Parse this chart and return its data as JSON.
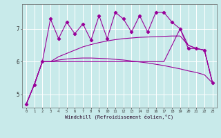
{
  "background_color": "#c8eaea",
  "line_color": "#990099",
  "x_hours": [
    0,
    1,
    2,
    3,
    4,
    5,
    6,
    7,
    8,
    9,
    10,
    11,
    12,
    13,
    14,
    15,
    16,
    17,
    18,
    19,
    20,
    21,
    22,
    23
  ],
  "spiky_y": [
    4.7,
    5.3,
    6.0,
    7.3,
    6.7,
    7.2,
    6.85,
    7.15,
    6.65,
    7.4,
    6.7,
    7.5,
    7.3,
    6.9,
    7.4,
    6.9,
    7.5,
    7.5,
    7.2,
    7.0,
    6.4,
    6.4,
    6.35,
    5.35
  ],
  "line1_y": [
    4.7,
    5.3,
    6.0,
    6.0,
    6.0,
    6.0,
    6.0,
    6.0,
    6.0,
    6.0,
    6.0,
    6.0,
    6.0,
    6.0,
    6.0,
    6.0,
    6.0,
    6.0,
    6.5,
    7.0,
    6.5,
    6.4,
    6.35,
    5.35
  ],
  "line2_y": [
    4.7,
    5.3,
    6.0,
    6.0,
    6.15,
    6.25,
    6.35,
    6.45,
    6.52,
    6.58,
    6.63,
    6.67,
    6.7,
    6.72,
    6.74,
    6.75,
    6.76,
    6.77,
    6.78,
    6.78,
    6.5,
    6.4,
    6.35,
    5.35
  ],
  "line3_y": [
    4.7,
    5.3,
    6.0,
    6.0,
    6.05,
    6.08,
    6.1,
    6.11,
    6.11,
    6.1,
    6.09,
    6.07,
    6.05,
    6.02,
    5.99,
    5.96,
    5.92,
    5.88,
    5.83,
    5.78,
    5.72,
    5.67,
    5.6,
    5.35
  ],
  "xlabel": "Windchill (Refroidissement éolien,°C)",
  "ylim": [
    4.6,
    7.75
  ],
  "yticks": [
    5,
    6,
    7
  ],
  "xlim": [
    -0.5,
    23.5
  ],
  "xtick_labels": [
    "0",
    "1",
    "2",
    "3",
    "4",
    "5",
    "6",
    "7",
    "8",
    "9",
    "10",
    "11",
    "12",
    "13",
    "14",
    "15",
    "16",
    "17",
    "18",
    "19",
    "20",
    "21",
    "22",
    "23"
  ]
}
